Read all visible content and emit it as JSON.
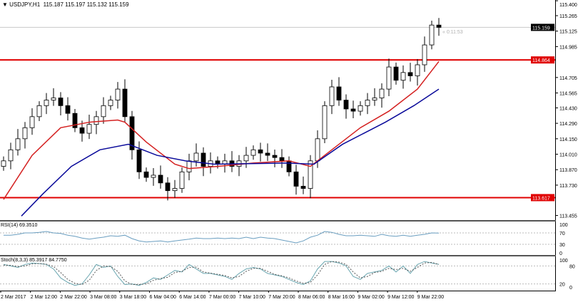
{
  "header": {
    "symbol": "USDJPY,H1",
    "ohlc": "115.187 115.197 115.132 115.159"
  },
  "countdown": "« 0:11:53",
  "colors": {
    "level_line": "#e00000",
    "ma_fast": "#d42020",
    "ma_slow": "#0a0a9a",
    "rsi": "#6a9ec0",
    "stoch_main": "#6aa6b0",
    "stoch_signal": "#555555",
    "bid_label": "#000000"
  },
  "chart_data": [
    {
      "type": "candlestick",
      "title": "USDJPY,H1",
      "price_axis_ticks": [
        "115.400",
        "115.265",
        "115.125",
        "114.985",
        "114.705",
        "114.565",
        "114.430",
        "114.290",
        "114.150",
        "114.010",
        "113.870",
        "113.730",
        "113.455"
      ],
      "ylim": [
        113.4,
        115.41
      ],
      "time_axis_ticks": [
        "2 Mar 2017",
        "2 Mar 12:00",
        "2 Mar 22:00",
        "3 Mar 08:00",
        "3 Mar 18:00",
        "6 Mar 04:00",
        "6 Mar 14:00",
        "7 Mar 00:00",
        "7 Mar 10:00",
        "7 Mar 20:00",
        "8 Mar 06:00",
        "8 Mar 16:00",
        "9 Mar 02:00",
        "9 Mar 12:00",
        "9 Mar 22:00"
      ],
      "current_price": "115.159",
      "levels": [
        "114.864",
        "113.617"
      ],
      "closes": [
        113.95,
        114.05,
        114.15,
        114.25,
        114.35,
        114.45,
        114.5,
        114.52,
        114.45,
        114.38,
        114.25,
        114.2,
        114.28,
        114.35,
        114.45,
        114.5,
        114.6,
        114.35,
        114.05,
        113.85,
        113.8,
        113.82,
        113.75,
        113.68,
        113.7,
        113.85,
        113.95,
        114.02,
        113.9,
        113.95,
        113.92,
        113.95,
        113.9,
        113.95,
        114.0,
        114.05,
        114.02,
        114.0,
        113.98,
        113.95,
        113.85,
        113.72,
        113.7,
        113.95,
        114.15,
        114.45,
        114.62,
        114.5,
        114.42,
        114.4,
        114.45,
        114.5,
        114.52,
        114.6,
        114.8,
        114.68,
        114.75,
        114.72,
        114.82,
        115.0,
        115.18,
        115.159
      ],
      "ma_fast": [
        [
          0,
          113.6
        ],
        [
          4,
          114.0
        ],
        [
          8,
          114.25
        ],
        [
          12,
          114.3
        ],
        [
          16,
          114.32
        ],
        [
          17,
          114.3
        ],
        [
          20,
          114.12
        ],
        [
          24,
          113.92
        ],
        [
          26,
          113.88
        ],
        [
          30,
          113.9
        ],
        [
          35,
          113.93
        ],
        [
          40,
          113.95
        ],
        [
          43,
          113.9
        ],
        [
          46,
          114.05
        ],
        [
          50,
          114.25
        ],
        [
          54,
          114.4
        ],
        [
          58,
          114.6
        ],
        [
          61,
          114.85
        ]
      ],
      "ma_slow": [
        [
          2.5,
          113.45
        ],
        [
          5.5,
          113.65
        ],
        [
          9.5,
          113.9
        ],
        [
          13.5,
          114.05
        ],
        [
          17.5,
          114.1
        ],
        [
          21.5,
          114.0
        ],
        [
          25.5,
          113.95
        ],
        [
          29.5,
          113.92
        ],
        [
          39.5,
          113.93
        ],
        [
          43.5,
          113.92
        ],
        [
          47.5,
          114.1
        ],
        [
          53.5,
          114.3
        ],
        [
          57.5,
          114.45
        ],
        [
          61,
          114.6
        ]
      ]
    },
    {
      "type": "line",
      "title": "RSI(14) 69.3510",
      "ylim": [
        0,
        100
      ],
      "tick_labels": [
        "100",
        "70",
        "30",
        "0"
      ],
      "values": [
        62,
        62,
        65,
        70,
        70,
        72,
        75,
        70,
        68,
        62,
        58,
        52,
        48,
        52,
        55,
        60,
        58,
        62,
        50,
        42,
        38,
        40,
        42,
        38,
        42,
        45,
        48,
        52,
        50,
        50,
        52,
        50,
        52,
        50,
        55,
        50,
        55,
        52,
        50,
        45,
        40,
        35,
        42,
        55,
        62,
        75,
        72,
        65,
        60,
        60,
        62,
        60,
        58,
        65,
        60,
        58,
        62,
        58,
        62,
        65,
        70,
        69.35
      ]
    },
    {
      "type": "line",
      "title": "Stoch(8,3,3) 85.3917 84.7750",
      "ylim": [
        0,
        100
      ],
      "tick_labels": [
        "100",
        "80",
        "20",
        "0"
      ],
      "series": [
        {
          "values": [
            85,
            80,
            75,
            85,
            90,
            88,
            85,
            70,
            40,
            25,
            15,
            20,
            50,
            85,
            75,
            80,
            45,
            18,
            20,
            15,
            25,
            40,
            35,
            50,
            65,
            60,
            85,
            70,
            55,
            55,
            50,
            45,
            35,
            55,
            70,
            75,
            70,
            55,
            50,
            45,
            35,
            25,
            18,
            30,
            70,
            95,
            95,
            90,
            80,
            45,
            35,
            55,
            60,
            65,
            80,
            60,
            80,
            55,
            85,
            95,
            90,
            85.39
          ]
        },
        {
          "values": [
            83,
            82,
            78,
            80,
            87,
            88,
            86,
            78,
            58,
            35,
            22,
            18,
            32,
            65,
            80,
            78,
            62,
            30,
            18,
            18,
            20,
            32,
            38,
            42,
            58,
            62,
            75,
            76,
            60,
            56,
            52,
            48,
            40,
            45,
            62,
            72,
            72,
            62,
            52,
            47,
            40,
            30,
            22,
            25,
            50,
            85,
            95,
            93,
            85,
            60,
            40,
            45,
            58,
            62,
            72,
            68,
            72,
            62,
            75,
            90,
            92,
            84.78
          ]
        }
      ]
    }
  ]
}
